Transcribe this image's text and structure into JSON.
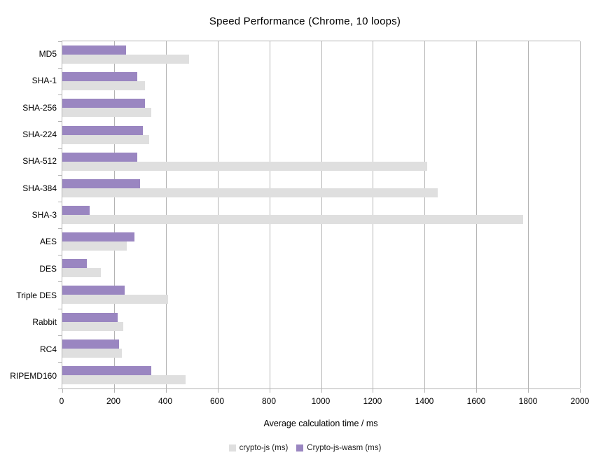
{
  "title": "Speed Performance (Chrome, 10 loops)",
  "x_axis_title": "Average calculation time / ms",
  "colors": {
    "crypto_js": "#dfdfdf",
    "crypto_js_wasm": "#9a86c1",
    "gridline": "#b3b3b3"
  },
  "legend": [
    {
      "label": "crypto-js (ms)",
      "color": "#dfdfdf"
    },
    {
      "label": "Crypto-js-wasm (ms)",
      "color": "#9a86c1"
    }
  ],
  "chart_data": {
    "type": "bar",
    "orientation": "horizontal",
    "title": "Speed Performance (Chrome, 10 loops)",
    "xlabel": "Average calculation time / ms",
    "ylabel": "",
    "xlim": [
      0,
      2000
    ],
    "xticks": [
      0,
      200,
      400,
      600,
      800,
      1000,
      1200,
      1400,
      1600,
      1800,
      2000
    ],
    "grid": true,
    "legend_position": "bottom",
    "categories": [
      "MD5",
      "SHA-1",
      "SHA-256",
      "SHA-224",
      "SHA-512",
      "SHA-384",
      "SHA-3",
      "AES",
      "DES",
      "Triple DES",
      "Rabbit",
      "RC4",
      "RIPEMD160"
    ],
    "series": [
      {
        "name": "crypto-js (ms)",
        "color": "#dfdfdf",
        "values": [
          490,
          320,
          345,
          335,
          1410,
          1450,
          1780,
          250,
          150,
          410,
          235,
          230,
          475
        ]
      },
      {
        "name": "Crypto-js-wasm (ms)",
        "color": "#9a86c1",
        "values": [
          245,
          290,
          320,
          310,
          290,
          300,
          105,
          280,
          95,
          240,
          215,
          220,
          345
        ]
      }
    ]
  }
}
